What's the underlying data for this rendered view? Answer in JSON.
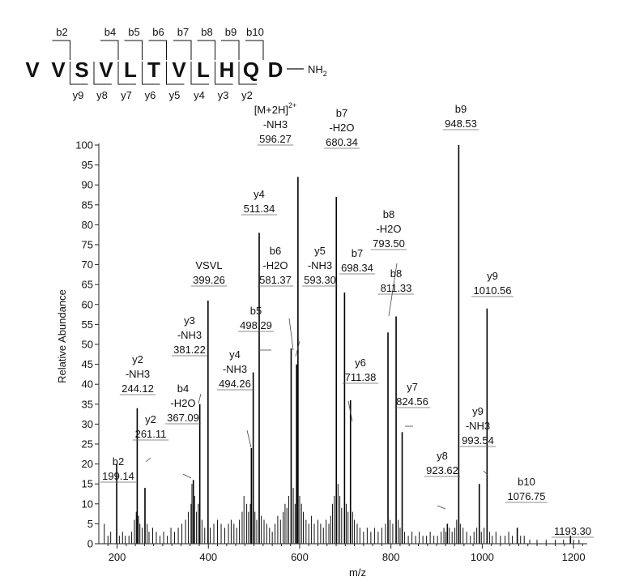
{
  "chart_data": {
    "type": "bar",
    "xlabel": "m/z",
    "ylabel": "Relative Abundance",
    "xlim": [
      160,
      1230
    ],
    "ylim": [
      0,
      100
    ],
    "x_ticks": [
      "200",
      "400",
      "600",
      "800",
      "1000",
      "1200"
    ],
    "y_ticks": [
      "0",
      "5",
      "10",
      "15",
      "20",
      "25",
      "30",
      "35",
      "40",
      "45",
      "50",
      "55",
      "60",
      "65",
      "70",
      "75",
      "80",
      "85",
      "90",
      "95",
      "100"
    ],
    "peptide": {
      "residues": [
        "V",
        "V",
        "S",
        "V",
        "L",
        "T",
        "V",
        "L",
        "H",
        "Q",
        "D"
      ],
      "c_term": "NH",
      "c_term_sub": "2",
      "b_ions": [
        "b2",
        "b4",
        "b5",
        "b6",
        "b7",
        "b8",
        "b9",
        "b10"
      ],
      "y_ions": [
        "y9",
        "y8",
        "y7",
        "y6",
        "y5",
        "y4",
        "y3",
        "y2"
      ]
    },
    "peaks": [
      {
        "mz": 199.14,
        "intensity": 20,
        "label": [
          "b2",
          "199.14"
        ]
      },
      {
        "mz": 244.12,
        "intensity": 34,
        "label": [
          "y2",
          "-NH3",
          "244.12"
        ]
      },
      {
        "mz": 261.11,
        "intensity": 14,
        "label": [
          "y2",
          "261.11"
        ]
      },
      {
        "mz": 367.09,
        "intensity": 16,
        "label": [
          "b4",
          "-H2O",
          "367.09"
        ]
      },
      {
        "mz": 381.22,
        "intensity": 35,
        "label": [
          "y3",
          "-NH3",
          "381.22"
        ]
      },
      {
        "mz": 399.26,
        "intensity": 61,
        "label": [
          "VSVL",
          "399.26"
        ]
      },
      {
        "mz": 494.26,
        "intensity": 24,
        "label": [
          "y4",
          "-NH3",
          "494.26"
        ]
      },
      {
        "mz": 498.29,
        "intensity": 43,
        "label": [
          "b5",
          "498.29"
        ]
      },
      {
        "mz": 511.34,
        "intensity": 78,
        "label": [
          "y4",
          "511.34"
        ]
      },
      {
        "mz": 581.37,
        "intensity": 49,
        "label": [
          "b6",
          "-H2O",
          "581.37"
        ]
      },
      {
        "mz": 593.3,
        "intensity": 45,
        "label": [
          "y5",
          "-NH3",
          "593.30"
        ]
      },
      {
        "mz": 596.27,
        "intensity": 92,
        "label": [
          "[M+2H]",
          "-NH3",
          "596.27"
        ],
        "superscript": "2+"
      },
      {
        "mz": 680.34,
        "intensity": 87,
        "label": [
          "b7",
          "-H2O",
          "680.34"
        ]
      },
      {
        "mz": 698.34,
        "intensity": 63,
        "label": [
          "b7",
          "698.34"
        ]
      },
      {
        "mz": 711.38,
        "intensity": 36,
        "label": [
          "y6",
          "711.38"
        ]
      },
      {
        "mz": 793.5,
        "intensity": 53,
        "label": [
          "b8",
          "-H2O",
          "793.50"
        ]
      },
      {
        "mz": 811.33,
        "intensity": 57,
        "label": [
          "b8",
          "811.33"
        ]
      },
      {
        "mz": 824.56,
        "intensity": 28,
        "label": [
          "y7",
          "824.56"
        ]
      },
      {
        "mz": 923.62,
        "intensity": 5,
        "label": [
          "y8",
          "923.62"
        ]
      },
      {
        "mz": 948.53,
        "intensity": 100,
        "label": [
          "b9",
          "948.53"
        ]
      },
      {
        "mz": 993.54,
        "intensity": 15,
        "label": [
          "y9",
          "-NH3",
          "993.54"
        ]
      },
      {
        "mz": 1010.56,
        "intensity": 59,
        "label": [
          "y9",
          "1010.56"
        ]
      },
      {
        "mz": 1076.75,
        "intensity": 4,
        "label": [
          "b10",
          "1076.75"
        ]
      },
      {
        "mz": 1193.3,
        "intensity": 2,
        "label": [
          "1193.30"
        ]
      }
    ],
    "noise_peaks": [
      [
        172,
        5
      ],
      [
        180,
        2
      ],
      [
        186,
        3
      ],
      [
        205,
        2
      ],
      [
        212,
        3
      ],
      [
        218,
        2
      ],
      [
        226,
        2
      ],
      [
        232,
        3
      ],
      [
        238,
        6
      ],
      [
        242,
        8
      ],
      [
        247,
        7
      ],
      [
        250,
        5
      ],
      [
        255,
        4
      ],
      [
        266,
        5
      ],
      [
        270,
        3
      ],
      [
        278,
        4
      ],
      [
        286,
        3
      ],
      [
        294,
        2
      ],
      [
        302,
        3
      ],
      [
        310,
        2
      ],
      [
        318,
        4
      ],
      [
        326,
        3
      ],
      [
        334,
        4
      ],
      [
        342,
        5
      ],
      [
        350,
        6
      ],
      [
        356,
        8
      ],
      [
        362,
        10
      ],
      [
        364,
        15
      ],
      [
        370,
        12
      ],
      [
        374,
        8
      ],
      [
        378,
        10
      ],
      [
        386,
        6
      ],
      [
        392,
        4
      ],
      [
        404,
        4
      ],
      [
        412,
        5
      ],
      [
        420,
        6
      ],
      [
        428,
        5
      ],
      [
        436,
        4
      ],
      [
        444,
        5
      ],
      [
        450,
        6
      ],
      [
        456,
        5
      ],
      [
        462,
        4
      ],
      [
        468,
        6
      ],
      [
        474,
        8
      ],
      [
        478,
        12
      ],
      [
        484,
        10
      ],
      [
        488,
        8
      ],
      [
        492,
        10
      ],
      [
        502,
        8
      ],
      [
        506,
        6
      ],
      [
        516,
        7
      ],
      [
        522,
        6
      ],
      [
        528,
        5
      ],
      [
        534,
        4
      ],
      [
        540,
        3
      ],
      [
        546,
        5
      ],
      [
        552,
        7
      ],
      [
        558,
        6
      ],
      [
        564,
        8
      ],
      [
        568,
        10
      ],
      [
        572,
        9
      ],
      [
        576,
        12
      ],
      [
        586,
        14
      ],
      [
        590,
        10
      ],
      [
        600,
        12
      ],
      [
        604,
        10
      ],
      [
        608,
        8
      ],
      [
        614,
        6
      ],
      [
        620,
        5
      ],
      [
        626,
        7
      ],
      [
        632,
        5
      ],
      [
        640,
        6
      ],
      [
        646,
        5
      ],
      [
        652,
        4
      ],
      [
        658,
        6
      ],
      [
        664,
        5
      ],
      [
        668,
        7
      ],
      [
        672,
        10
      ],
      [
        676,
        12
      ],
      [
        684,
        15
      ],
      [
        688,
        12
      ],
      [
        692,
        9
      ],
      [
        702,
        10
      ],
      [
        706,
        8
      ],
      [
        716,
        8
      ],
      [
        720,
        6
      ],
      [
        726,
        5
      ],
      [
        732,
        4
      ],
      [
        740,
        3
      ],
      [
        748,
        4
      ],
      [
        756,
        3
      ],
      [
        764,
        4
      ],
      [
        772,
        3
      ],
      [
        780,
        4
      ],
      [
        788,
        5
      ],
      [
        798,
        6
      ],
      [
        804,
        5
      ],
      [
        816,
        6
      ],
      [
        820,
        4
      ],
      [
        830,
        3
      ],
      [
        838,
        2
      ],
      [
        846,
        3
      ],
      [
        854,
        2
      ],
      [
        862,
        3
      ],
      [
        870,
        2
      ],
      [
        878,
        2
      ],
      [
        886,
        3
      ],
      [
        894,
        2
      ],
      [
        902,
        2
      ],
      [
        910,
        3
      ],
      [
        916,
        4
      ],
      [
        920,
        3
      ],
      [
        928,
        4
      ],
      [
        934,
        3
      ],
      [
        940,
        4
      ],
      [
        944,
        6
      ],
      [
        952,
        5
      ],
      [
        958,
        4
      ],
      [
        966,
        3
      ],
      [
        974,
        2
      ],
      [
        982,
        3
      ],
      [
        988,
        4
      ],
      [
        998,
        3
      ],
      [
        1004,
        4
      ],
      [
        1016,
        3
      ],
      [
        1022,
        2
      ],
      [
        1030,
        3
      ],
      [
        1040,
        2
      ],
      [
        1050,
        2
      ],
      [
        1058,
        3
      ],
      [
        1066,
        2
      ],
      [
        1084,
        2
      ],
      [
        1092,
        2
      ],
      [
        1104,
        1
      ],
      [
        1120,
        1
      ],
      [
        1140,
        1
      ],
      [
        1160,
        1
      ],
      [
        1178,
        1
      ],
      [
        1200,
        1
      ],
      [
        1212,
        1
      ]
    ]
  }
}
